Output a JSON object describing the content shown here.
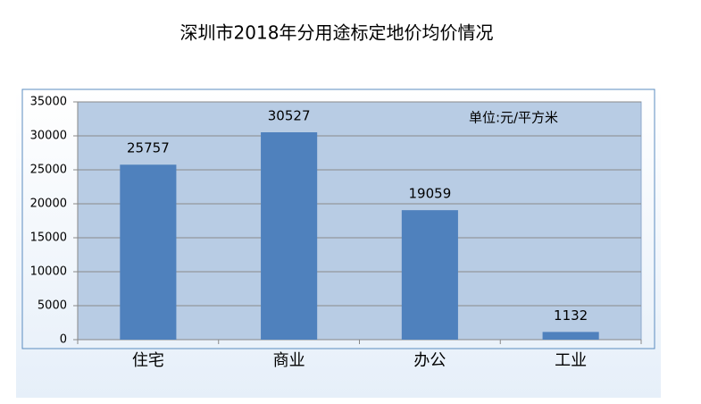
{
  "chart_data": {
    "type": "bar",
    "title": "深圳市2018年分用途标定地价均价情况",
    "annotation": "单位:元/平方米",
    "categories": [
      "住宅",
      "商业",
      "办公",
      "工业"
    ],
    "values": [
      25757,
      30527,
      19059,
      1132
    ],
    "color": "#4f81bd",
    "ylim": [
      0,
      35000
    ],
    "yticks": [
      0,
      5000,
      10000,
      15000,
      20000,
      25000,
      30000,
      35000
    ],
    "grid": true
  }
}
